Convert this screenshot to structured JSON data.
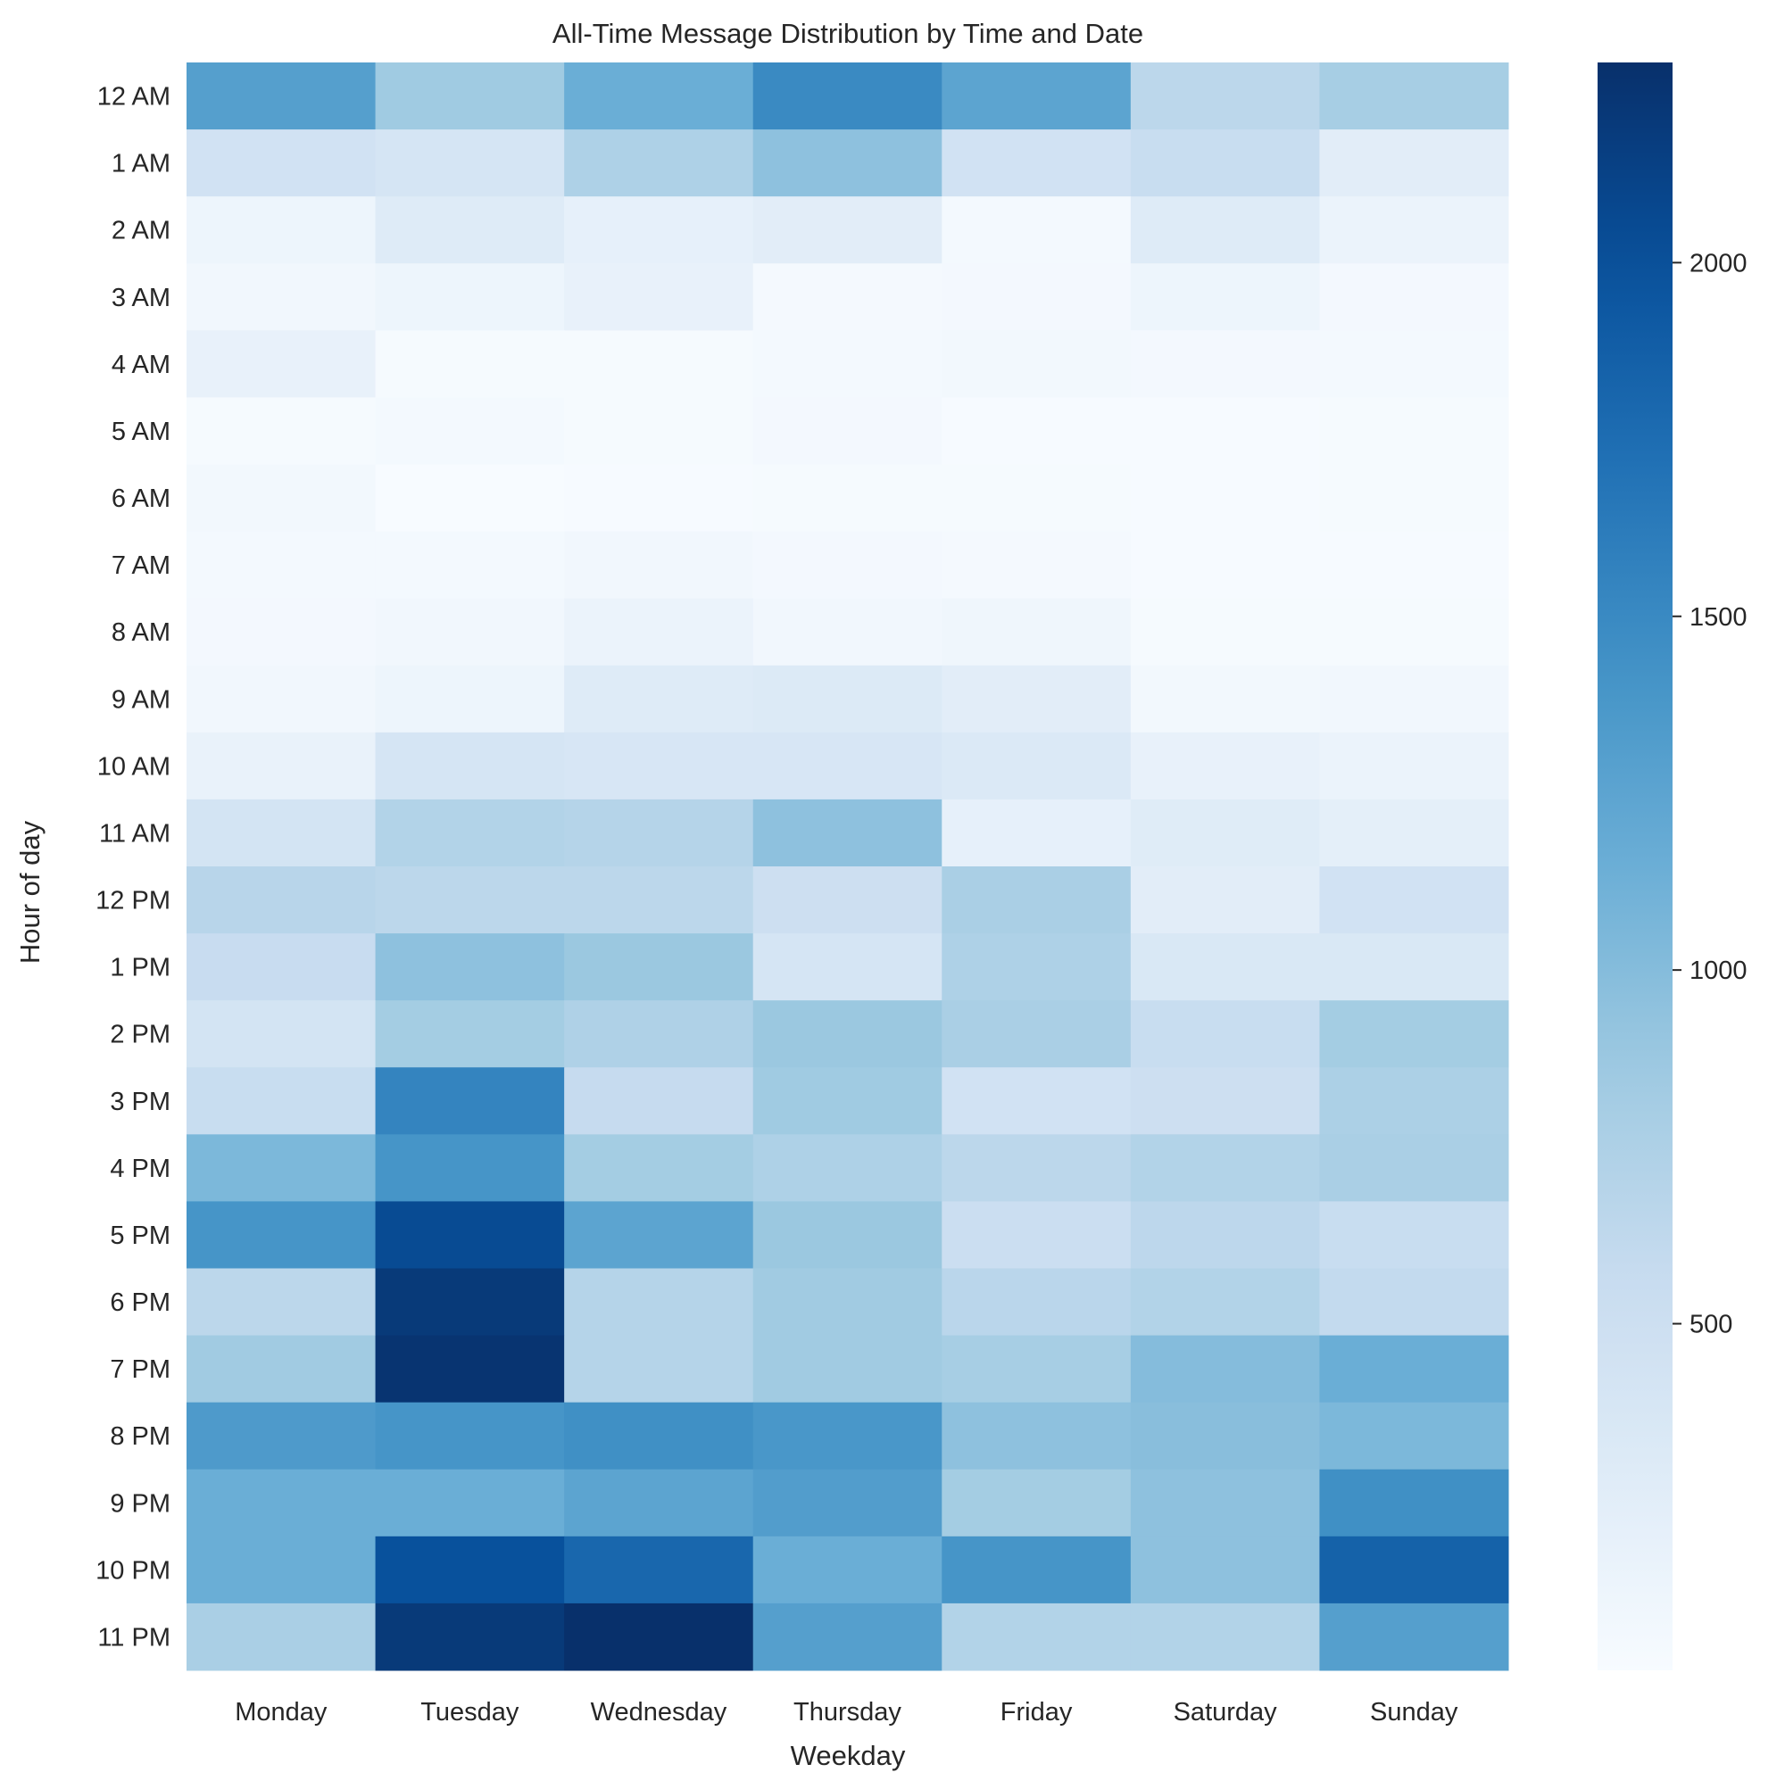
{
  "chart_data": {
    "type": "heatmap",
    "title": "All-Time Message Distribution by Time and Date",
    "xlabel": "Weekday",
    "ylabel": "Hour of day",
    "colormap": "Blues",
    "colorbar": {
      "range": [
        10,
        2283
      ],
      "ticks": [
        500,
        1000,
        1500,
        2000
      ]
    },
    "grid": false,
    "x_categories": [
      "Monday",
      "Tuesday",
      "Wednesday",
      "Thursday",
      "Friday",
      "Saturday",
      "Sunday"
    ],
    "y_categories": [
      "12 AM",
      "1 AM",
      "2 AM",
      "3 AM",
      "4 AM",
      "5 AM",
      "6 AM",
      "7 AM",
      "8 AM",
      "9 AM",
      "10 AM",
      "11 AM",
      "12 PM",
      "1 PM",
      "2 PM",
      "3 PM",
      "4 PM",
      "5 PM",
      "6 PM",
      "7 PM",
      "8 PM",
      "9 PM",
      "10 PM",
      "11 PM"
    ],
    "values": [
      [
        1300,
        850,
        1150,
        1500,
        1250,
        650,
        800
      ],
      [
        450,
        400,
        750,
        950,
        450,
        550,
        250
      ],
      [
        120,
        300,
        200,
        250,
        50,
        300,
        150
      ],
      [
        80,
        120,
        180,
        40,
        60,
        120,
        60
      ],
      [
        180,
        30,
        30,
        50,
        70,
        60,
        50
      ],
      [
        30,
        50,
        30,
        60,
        20,
        20,
        30
      ],
      [
        70,
        10,
        20,
        30,
        30,
        20,
        30
      ],
      [
        50,
        50,
        80,
        60,
        40,
        20,
        20
      ],
      [
        60,
        80,
        150,
        80,
        100,
        30,
        30
      ],
      [
        80,
        120,
        300,
        320,
        250,
        70,
        80
      ],
      [
        170,
        400,
        380,
        380,
        330,
        180,
        150
      ],
      [
        420,
        720,
        700,
        950,
        200,
        280,
        230
      ],
      [
        680,
        650,
        650,
        500,
        780,
        250,
        450
      ],
      [
        560,
        950,
        880,
        400,
        750,
        350,
        350
      ],
      [
        420,
        820,
        740,
        880,
        780,
        550,
        820
      ],
      [
        550,
        1550,
        580,
        850,
        450,
        500,
        760
      ],
      [
        1050,
        1400,
        820,
        750,
        650,
        720,
        780
      ],
      [
        1400,
        2050,
        1250,
        880,
        520,
        640,
        550
      ],
      [
        650,
        2200,
        700,
        840,
        660,
        720,
        600
      ],
      [
        840,
        2250,
        700,
        840,
        800,
        1000,
        1150
      ],
      [
        1350,
        1400,
        1450,
        1380,
        950,
        980,
        1050
      ],
      [
        1150,
        1150,
        1250,
        1320,
        820,
        950,
        1450
      ],
      [
        1150,
        2000,
        1800,
        1150,
        1400,
        950,
        1850
      ],
      [
        780,
        2200,
        2283,
        1300,
        720,
        720,
        1300
      ]
    ]
  }
}
